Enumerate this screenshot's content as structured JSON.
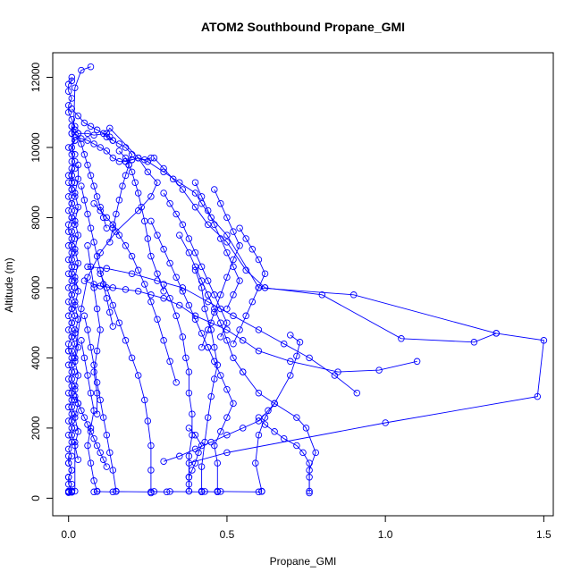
{
  "chart_data": {
    "type": "line",
    "title": "ATOM2 Southbound Propane_GMI",
    "xlabel": "Propane_GMI",
    "ylabel": "Altitude (m)",
    "xlim": [
      -0.05,
      1.53
    ],
    "ylim": [
      -500,
      12700
    ],
    "xticks": [
      0.0,
      0.5,
      1.0,
      1.5
    ],
    "xtick_labels": [
      "0.0",
      "0.5",
      "1.0",
      "1.5"
    ],
    "yticks": [
      0,
      2000,
      4000,
      6000,
      8000,
      10000,
      12000
    ],
    "ytick_labels": [
      "0",
      "2000",
      "4000",
      "6000",
      "8000",
      "10000",
      "12000"
    ],
    "series_color": "#0000ff",
    "marker": "open-circle",
    "grid": false,
    "legend": "none",
    "series": [
      {
        "x": [
          0.01,
          0.01,
          0.0,
          0.0,
          0.01,
          0.0,
          0.0,
          0.01,
          0.02,
          0.01,
          0.02,
          0.0,
          0.01,
          0.02,
          0.01,
          0.0,
          0.01,
          0.02,
          0.04,
          0.07
        ],
        "y": [
          12000,
          11900,
          11800,
          11600,
          11400,
          11200,
          11000,
          10800,
          10600,
          10400,
          10200,
          10000,
          9800,
          9600,
          9400,
          9200,
          9000,
          11700,
          12200,
          12300
        ]
      },
      {
        "x": [
          0.0,
          0.01,
          0.0,
          0.01,
          0.0,
          0.01,
          0.0,
          0.0,
          0.01,
          0.0,
          0.01,
          0.0,
          0.01,
          0.0,
          0.01,
          0.0,
          0.01,
          0.0,
          0.01,
          0.0,
          0.01,
          0.0,
          0.01,
          0.0,
          0.0
        ],
        "y": [
          9000,
          8800,
          8600,
          8400,
          8200,
          8000,
          7800,
          7600,
          7400,
          7200,
          7000,
          6800,
          6600,
          6400,
          6200,
          6000,
          5800,
          5600,
          5400,
          5200,
          5000,
          4800,
          4600,
          4400,
          4200
        ]
      },
      {
        "x": [
          0.0,
          0.01,
          0.0,
          0.01,
          0.0,
          0.01,
          0.0,
          0.01,
          0.0,
          0.01,
          0.0,
          0.01,
          0.0,
          0.01,
          0.0,
          0.01,
          0.0,
          0.01,
          0.0,
          0.01,
          0.0,
          0.01
        ],
        "y": [
          4200,
          4000,
          3800,
          3600,
          3400,
          3200,
          3000,
          2800,
          2600,
          2400,
          2200,
          2000,
          1800,
          1600,
          1400,
          1200,
          1000,
          800,
          600,
          400,
          200,
          180
        ]
      },
      {
        "x": [
          0.01,
          0.02,
          0.03,
          0.06,
          0.08,
          0.12,
          0.13,
          0.22,
          0.25,
          0.3,
          0.35,
          0.4,
          0.42,
          0.45,
          0.5,
          0.6
        ],
        "y": [
          10600,
          10500,
          10400,
          10400,
          10350,
          10400,
          10550,
          9700,
          9600,
          9300,
          9000,
          8700,
          8400,
          8000,
          7500,
          6000
        ]
      },
      {
        "x": [
          0.6,
          0.9,
          1.35,
          1.5,
          1.48,
          1.0,
          0.5,
          0.38,
          0.38
        ],
        "y": [
          6000,
          5800,
          4700,
          4500,
          2900,
          2150,
          1300,
          1000,
          200
        ]
      },
      {
        "x": [
          0.18,
          0.2,
          0.22,
          0.25,
          0.28,
          0.26,
          0.22,
          0.15,
          0.1,
          0.06,
          0.04,
          0.02
        ],
        "y": [
          9600,
          9650,
          9700,
          9300,
          9000,
          8600,
          8200,
          7600,
          7000,
          6300,
          5400,
          4000
        ]
      },
      {
        "x": [
          0.02,
          0.04,
          0.06,
          0.08,
          0.1,
          0.12,
          0.14,
          0.16,
          0.18,
          0.2,
          0.22,
          0.24,
          0.26
        ],
        "y": [
          10300,
          10250,
          10200,
          10100,
          10000,
          9900,
          9700,
          9600,
          9600,
          9650,
          9700,
          9650,
          9700
        ]
      },
      {
        "x": [
          0.27,
          0.3,
          0.33,
          0.36,
          0.4,
          0.44,
          0.5,
          0.56,
          0.62
        ],
        "y": [
          9700,
          9400,
          9100,
          8800,
          8300,
          7800,
          7300,
          6500,
          6000
        ]
      },
      {
        "x": [
          0.62,
          0.8,
          1.05,
          1.28,
          1.35
        ],
        "y": [
          6000,
          5800,
          4550,
          4450,
          4700
        ]
      },
      {
        "x": [
          0.35,
          0.38,
          0.4,
          0.42,
          0.44,
          0.46,
          0.48,
          0.5,
          0.52,
          0.55
        ],
        "y": [
          7500,
          7000,
          6600,
          6200,
          5800,
          5400,
          5000,
          4500,
          4000,
          3600
        ]
      },
      {
        "x": [
          0.55,
          0.6,
          0.65,
          0.72,
          0.75,
          0.78,
          0.76,
          0.76
        ],
        "y": [
          3600,
          3000,
          2700,
          2300,
          2000,
          1300,
          800,
          150
        ]
      },
      {
        "x": [
          0.7,
          0.73,
          0.72,
          0.7,
          0.65,
          0.62,
          0.6,
          0.59,
          0.61
        ],
        "y": [
          4650,
          4450,
          4050,
          3500,
          2700,
          2300,
          1800,
          1000,
          200
        ]
      },
      {
        "x": [
          0.4,
          0.42,
          0.43,
          0.45,
          0.46,
          0.47,
          0.46,
          0.45,
          0.44,
          0.43,
          0.42,
          0.42
        ],
        "y": [
          6500,
          6000,
          5400,
          4800,
          4300,
          3800,
          3400,
          2900,
          2300,
          1600,
          900,
          200
        ]
      },
      {
        "x": [
          0.3,
          0.32,
          0.34,
          0.36,
          0.37,
          0.38,
          0.38,
          0.39,
          0.39,
          0.38,
          0.38
        ],
        "y": [
          6100,
          5700,
          5200,
          4600,
          4000,
          3600,
          3000,
          2400,
          1800,
          1200,
          600
        ]
      },
      {
        "x": [
          0.1,
          0.12,
          0.14,
          0.16,
          0.18,
          0.2,
          0.22,
          0.24,
          0.25,
          0.26,
          0.26,
          0.26
        ],
        "y": [
          6400,
          6000,
          5500,
          5000,
          4500,
          4000,
          3500,
          2800,
          2200,
          1500,
          800,
          150
        ]
      },
      {
        "x": [
          0.05,
          0.06,
          0.07,
          0.08,
          0.09,
          0.1,
          0.11,
          0.12,
          0.13,
          0.14,
          0.15
        ],
        "y": [
          5200,
          4800,
          4300,
          3800,
          3300,
          2800,
          2300,
          1800,
          1300,
          800,
          200
        ]
      },
      {
        "x": [
          0.04,
          0.05,
          0.06,
          0.07,
          0.08,
          0.07,
          0.06,
          0.07,
          0.08,
          0.09
        ],
        "y": [
          4500,
          4000,
          3500,
          3000,
          2500,
          2000,
          1500,
          1000,
          500,
          200
        ]
      },
      {
        "x": [
          0.05,
          0.08,
          0.1,
          0.14,
          0.18,
          0.22,
          0.26,
          0.3,
          0.35,
          0.4,
          0.45,
          0.5,
          0.55,
          0.6,
          0.7,
          0.85,
          0.98,
          1.1
        ],
        "y": [
          6200,
          6100,
          6050,
          6000,
          5950,
          5900,
          5800,
          5700,
          5500,
          5200,
          5000,
          4800,
          4500,
          4200,
          3900,
          3600,
          3650,
          3900
        ]
      },
      {
        "x": [
          0.06,
          0.12,
          0.2,
          0.28,
          0.36,
          0.44,
          0.52,
          0.6,
          0.68,
          0.76,
          0.84,
          0.91
        ],
        "y": [
          6600,
          6550,
          6400,
          6200,
          6000,
          5600,
          5200,
          4800,
          4400,
          4000,
          3500,
          3000
        ]
      },
      {
        "x": [
          0.08,
          0.1,
          0.12,
          0.14,
          0.16,
          0.18,
          0.2,
          0.22,
          0.24,
          0.26,
          0.28,
          0.3,
          0.32,
          0.34
        ],
        "y": [
          8400,
          8200,
          8000,
          7800,
          7500,
          7200,
          6900,
          6500,
          6100,
          5600,
          5100,
          4500,
          3900,
          3300
        ]
      },
      {
        "x": [
          0.16,
          0.18,
          0.19,
          0.2,
          0.21,
          0.22,
          0.23,
          0.24,
          0.25,
          0.26,
          0.28,
          0.3
        ],
        "y": [
          9900,
          9700,
          9500,
          9300,
          9000,
          8700,
          8300,
          7900,
          7400,
          6900,
          6400,
          5900
        ]
      },
      {
        "x": [
          0.12,
          0.14,
          0.16,
          0.18,
          0.2,
          0.19,
          0.18,
          0.17,
          0.16,
          0.15,
          0.14,
          0.13
        ],
        "y": [
          10300,
          10200,
          10100,
          10000,
          9800,
          9500,
          9200,
          8900,
          8500,
          8100,
          7700,
          7300
        ]
      },
      {
        "x": [
          0.46,
          0.48,
          0.5,
          0.52,
          0.54,
          0.52,
          0.5,
          0.48,
          0.46,
          0.44,
          0.42
        ],
        "y": [
          8800,
          8400,
          8000,
          7600,
          7200,
          6800,
          6300,
          5800,
          5300,
          4800,
          4300
        ]
      },
      {
        "x": [
          0.4,
          0.42,
          0.44,
          0.46,
          0.48,
          0.5,
          0.52,
          0.54,
          0.52,
          0.5
        ],
        "y": [
          9000,
          8600,
          8200,
          7800,
          7400,
          7000,
          6600,
          6200,
          5800,
          5400
        ]
      },
      {
        "x": [
          0.54,
          0.56,
          0.58,
          0.6,
          0.62,
          0.6,
          0.58,
          0.56,
          0.54,
          0.52
        ],
        "y": [
          7700,
          7400,
          7100,
          6800,
          6400,
          6000,
          5600,
          5200,
          4800,
          4400
        ]
      },
      {
        "x": [
          0.3,
          0.32,
          0.34,
          0.36,
          0.38,
          0.4,
          0.42,
          0.44,
          0.46,
          0.48,
          0.5,
          0.48
        ],
        "y": [
          8700,
          8400,
          8100,
          7800,
          7400,
          7000,
          6600,
          6200,
          5800,
          5400,
          5000,
          4600
        ]
      },
      {
        "x": [
          0.26,
          0.28,
          0.3,
          0.32,
          0.34,
          0.36,
          0.38,
          0.4,
          0.42,
          0.44
        ],
        "y": [
          7900,
          7500,
          7100,
          6700,
          6300,
          5900,
          5500,
          5100,
          4700,
          4300
        ]
      },
      {
        "x": [
          0.44,
          0.46,
          0.48,
          0.5,
          0.52,
          0.5,
          0.48,
          0.46,
          0.47,
          0.47
        ],
        "y": [
          4300,
          3900,
          3500,
          3100,
          2700,
          2300,
          1900,
          1500,
          1000,
          200
        ]
      },
      {
        "x": [
          0.01,
          0.01,
          0.02,
          0.01,
          0.02,
          0.01,
          0.02,
          0.01,
          0.02,
          0.01,
          0.02,
          0.01,
          0.02,
          0.01,
          0.02,
          0.01,
          0.02,
          0.01,
          0.02,
          0.01,
          0.02,
          0.01,
          0.02,
          0.02
        ],
        "y": [
          10600,
          10400,
          10200,
          10000,
          9800,
          9600,
          9400,
          9200,
          9000,
          8800,
          8600,
          8400,
          8200,
          8000,
          7800,
          7600,
          7400,
          7200,
          7000,
          6800,
          6600,
          6400,
          6200,
          6000
        ]
      },
      {
        "x": [
          0.02,
          0.01,
          0.02,
          0.01,
          0.02,
          0.01,
          0.02,
          0.01,
          0.02,
          0.01,
          0.02,
          0.01,
          0.02,
          0.01,
          0.02,
          0.01,
          0.02,
          0.01,
          0.02,
          0.01,
          0.02,
          0.01,
          0.02,
          0.02
        ],
        "y": [
          6000,
          5800,
          5600,
          5400,
          5200,
          5000,
          4800,
          4600,
          4400,
          4200,
          4000,
          3800,
          3600,
          3400,
          3200,
          3000,
          2800,
          2600,
          2400,
          2200,
          2000,
          1800,
          1600,
          200
        ]
      },
      {
        "x": [
          0.03,
          0.03,
          0.02,
          0.03,
          0.02,
          0.03,
          0.02,
          0.03,
          0.02,
          0.03,
          0.02,
          0.03,
          0.02,
          0.03,
          0.02,
          0.03,
          0.02,
          0.03,
          0.02,
          0.03,
          0.02,
          0.03
        ],
        "y": [
          9500,
          9100,
          8700,
          8300,
          7900,
          7500,
          7100,
          6700,
          6300,
          5900,
          5500,
          5100,
          4700,
          4300,
          3900,
          3500,
          3100,
          2700,
          2300,
          1900,
          1500,
          1100
        ]
      },
      {
        "x": [
          0.02,
          0.03,
          0.04,
          0.05,
          0.06,
          0.07,
          0.08,
          0.09,
          0.1,
          0.11,
          0.12
        ],
        "y": [
          2900,
          2700,
          2500,
          2300,
          2100,
          1900,
          1700,
          1500,
          1300,
          1100,
          900
        ]
      },
      {
        "x": [
          0.06,
          0.07,
          0.08,
          0.09,
          0.1,
          0.09,
          0.08,
          0.09,
          0.09
        ],
        "y": [
          7200,
          6600,
          6000,
          5400,
          4800,
          4200,
          3600,
          3000,
          2400
        ]
      },
      {
        "x": [
          0.04,
          0.05,
          0.06,
          0.07,
          0.08,
          0.09,
          0.1,
          0.11,
          0.12,
          0.13,
          0.14
        ],
        "y": [
          8900,
          8500,
          8100,
          7700,
          7300,
          6900,
          6500,
          6100,
          5700,
          5300,
          4900
        ]
      },
      {
        "x": [
          0.03,
          0.04,
          0.05,
          0.06,
          0.07,
          0.08,
          0.09,
          0.1,
          0.11,
          0.12
        ],
        "y": [
          10400,
          10100,
          9800,
          9500,
          9200,
          8900,
          8600,
          8300,
          8000,
          7700
        ]
      },
      {
        "x": [
          0.01,
          0.03,
          0.05,
          0.07,
          0.09,
          0.11,
          0.13,
          0.14
        ],
        "y": [
          11100,
          10900,
          10700,
          10600,
          10500,
          10400,
          10300,
          10200
        ]
      },
      {
        "x": [
          0.38,
          0.4,
          0.42,
          0.41,
          0.4,
          0.39,
          0.38,
          0.38,
          0.38
        ],
        "y": [
          2000,
          1800,
          1500,
          1300,
          1000,
          800,
          600,
          400,
          200
        ]
      },
      {
        "x": [
          0.3,
          0.35,
          0.4,
          0.45,
          0.5,
          0.55,
          0.6,
          0.63,
          0.65
        ],
        "y": [
          1050,
          1200,
          1400,
          1600,
          1800,
          2000,
          2200,
          2500,
          2700
        ]
      },
      {
        "x": [
          0.6,
          0.62,
          0.65,
          0.68,
          0.72,
          0.74,
          0.76,
          0.76,
          0.76
        ],
        "y": [
          2300,
          2100,
          1900,
          1700,
          1500,
          1300,
          1000,
          600,
          200
        ]
      },
      {
        "x": [
          0.0,
          0.0,
          0.01,
          0.0,
          0.0,
          0.01,
          0.0,
          0.0,
          0.0,
          0.01,
          0.0
        ],
        "y": [
          1200,
          1000,
          800,
          600,
          400,
          200,
          180,
          170,
          160,
          170,
          180
        ]
      },
      {
        "x": [
          0.08,
          0.09,
          0.14,
          0.15,
          0.26,
          0.27,
          0.31,
          0.32,
          0.42,
          0.43,
          0.47,
          0.48,
          0.6,
          0.61
        ],
        "y": [
          180,
          190,
          180,
          190,
          180,
          190,
          180,
          190,
          180,
          190,
          180,
          190,
          180,
          190
        ]
      }
    ]
  }
}
